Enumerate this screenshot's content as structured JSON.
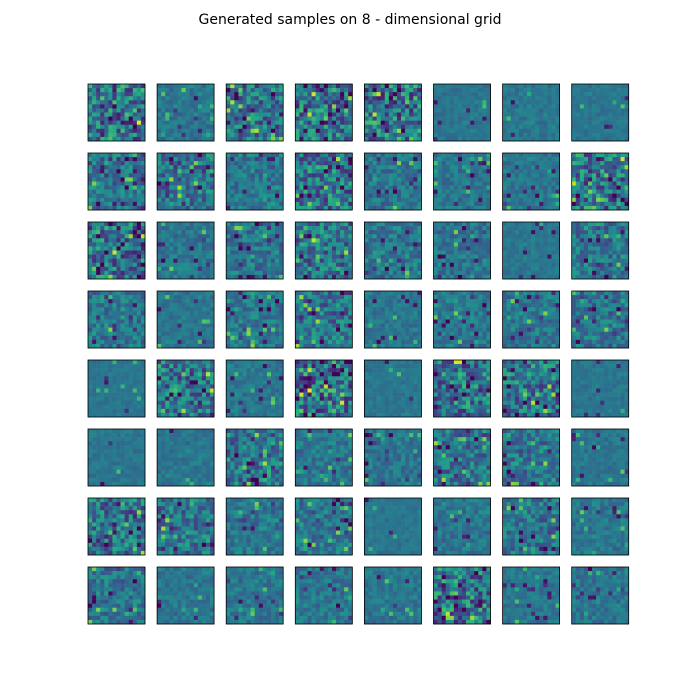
{
  "chart_data": {
    "type": "heatmap",
    "title": "Generated samples on 8 - dimensional grid",
    "rows": 8,
    "cols": 8,
    "colormap": "viridis",
    "axes_visible": false,
    "samples": [
      [
        0.7,
        0.2,
        0.55,
        0.62,
        0.68,
        0.12,
        0.15,
        0.1
      ],
      [
        0.38,
        0.45,
        0.32,
        0.6,
        0.3,
        0.25,
        0.18,
        0.62
      ],
      [
        0.62,
        0.22,
        0.35,
        0.55,
        0.32,
        0.28,
        0.12,
        0.4
      ],
      [
        0.35,
        0.15,
        0.3,
        0.42,
        0.18,
        0.25,
        0.28,
        0.35
      ],
      [
        0.08,
        0.58,
        0.18,
        0.72,
        0.12,
        0.62,
        0.55,
        0.1
      ],
      [
        0.12,
        0.15,
        0.5,
        0.25,
        0.25,
        0.42,
        0.4,
        0.15
      ],
      [
        0.55,
        0.45,
        0.28,
        0.32,
        0.1,
        0.22,
        0.42,
        0.22
      ],
      [
        0.35,
        0.18,
        0.22,
        0.25,
        0.18,
        0.65,
        0.18,
        0.22
      ]
    ]
  }
}
